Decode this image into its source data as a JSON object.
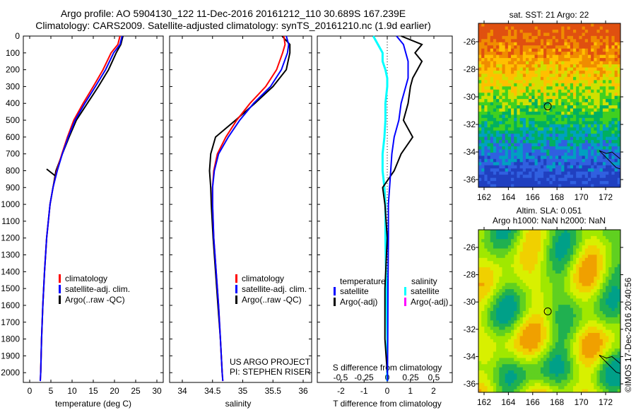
{
  "title_line1": "Argo profile: AO 5904130_122 11-Dec-2016 20161212_110 30.689S 167.239E",
  "title_line2": "Climatology: CARS2009. Satellite-adjusted climatology: synTS_20161210.nc (1.9d earlier)",
  "colors": {
    "climatology": "#ff0000",
    "satellite": "#0000ff",
    "argo": "#000000",
    "sal_satellite": "#00ffff",
    "sal_argo": "#ff00ff"
  },
  "chart_data": [
    {
      "type": "line",
      "name": "temperature",
      "xlabel": "temperature (deg C)",
      "xlim": [
        -1,
        31
      ],
      "ylim": [
        2050,
        0
      ],
      "xticks": [
        "0",
        "5",
        "10",
        "15",
        "20",
        "25",
        "30"
      ],
      "yticks": [
        "0",
        "100",
        "200",
        "300",
        "400",
        "500",
        "600",
        "700",
        "800",
        "900",
        "1000",
        "1100",
        "1200",
        "1300",
        "1400",
        "1500",
        "1600",
        "1700",
        "1800",
        "1900",
        "2000"
      ],
      "legend": [
        "climatology",
        "satellite-adj. clim.",
        "Argo(..raw -QC)"
      ],
      "depth": [
        0,
        50,
        100,
        200,
        300,
        400,
        500,
        600,
        700,
        800,
        900,
        1000,
        1200,
        1400,
        1600,
        1800,
        2000,
        2050
      ],
      "series": [
        {
          "name": "climatology",
          "values": [
            21.3,
            20.8,
            19.2,
            17.3,
            15.0,
            12.6,
            10.4,
            8.9,
            7.6,
            6.4,
            5.5,
            4.8,
            4.0,
            3.5,
            3.1,
            2.8,
            2.6,
            2.5
          ]
        },
        {
          "name": "satellite-adj. clim.",
          "values": [
            21.8,
            21.3,
            19.8,
            17.9,
            15.5,
            13.0,
            10.7,
            9.1,
            7.7,
            6.5,
            5.5,
            4.8,
            4.0,
            3.5,
            3.1,
            2.8,
            2.6,
            2.5
          ]
        },
        {
          "name": "Argo(..raw -QC)",
          "values": [
            22.0,
            21.5,
            20.4,
            18.6,
            16.2,
            13.6,
            11.0,
            9.3,
            7.7,
            6.2,
            5.5,
            4.8,
            4.0,
            3.5,
            3.1,
            2.8,
            2.6,
            null
          ]
        }
      ]
    },
    {
      "type": "line",
      "name": "salinity",
      "xlabel": "salinity",
      "xlim": [
        33.8,
        36.15
      ],
      "ylim": [
        2050,
        0
      ],
      "xticks": [
        "34",
        "34.5",
        "35",
        "35.5",
        "36"
      ],
      "legend": [
        "climatology",
        "satellite-adj. clim.",
        "Argo(..raw -QC)"
      ],
      "annotation": [
        "US ARGO PROJECT",
        "PI: STEPHEN RISER"
      ],
      "depth": [
        0,
        50,
        100,
        200,
        300,
        400,
        500,
        600,
        700,
        800,
        900,
        1000,
        1200,
        1400,
        1600,
        1800,
        2000,
        2050
      ],
      "series": [
        {
          "name": "climatology",
          "values": [
            35.68,
            35.7,
            35.66,
            35.56,
            35.38,
            35.12,
            34.9,
            34.72,
            34.58,
            34.52,
            34.5,
            34.5,
            34.52,
            34.56,
            34.6,
            34.63,
            34.66,
            34.67
          ]
        },
        {
          "name": "satellite-adj. clim.",
          "values": [
            35.72,
            35.76,
            35.74,
            35.64,
            35.46,
            35.18,
            34.95,
            34.76,
            34.6,
            34.53,
            34.5,
            34.5,
            34.52,
            34.56,
            34.6,
            34.63,
            34.66,
            34.67
          ]
        },
        {
          "name": "Argo(..raw -QC)",
          "values": [
            35.65,
            35.78,
            35.78,
            35.72,
            35.5,
            35.2,
            34.88,
            34.55,
            34.47,
            34.45,
            34.47,
            34.48,
            34.51,
            34.55,
            34.59,
            34.63,
            34.66,
            null
          ]
        }
      ]
    },
    {
      "type": "line",
      "name": "difference",
      "xlabel": "T difference from climatology",
      "x2label": "S difference from climatology",
      "xlim": [
        -3,
        3
      ],
      "ylim": [
        2050,
        0
      ],
      "xticks": [
        "-2",
        "-1",
        "0",
        "1",
        "2"
      ],
      "x2ticks": [
        "-0.5",
        "-0.25",
        "0",
        "0.25",
        "0.5"
      ],
      "legend_temperature_title": "temperature",
      "legend_salinity_title": "salinity",
      "legend": [
        "satellite",
        "Argo(-adj)",
        "satellite",
        "Argo(-adj)"
      ],
      "depth": [
        0,
        50,
        100,
        150,
        200,
        250,
        300,
        400,
        500,
        600,
        700,
        800,
        900,
        1000,
        1200,
        1500,
        1800,
        2000,
        2050
      ],
      "series": [
        {
          "name": "T satellite",
          "values": [
            0.4,
            0.7,
            0.8,
            0.9,
            0.9,
            0.9,
            0.8,
            0.6,
            0.5,
            0.3,
            0.2,
            0.15,
            0.1,
            0.05,
            0.05,
            0.03,
            0.02,
            0.01,
            0.01
          ]
        },
        {
          "name": "T Argo(-adj)",
          "values": [
            0.6,
            1.5,
            1.2,
            1.5,
            1.3,
            1.1,
            1.0,
            0.9,
            0.7,
            1.1,
            0.6,
            0.3,
            -0.2,
            -0.1,
            0.0,
            -0.1,
            -0.1,
            0.0,
            null
          ]
        },
        {
          "name": "S satellite",
          "values": [
            -0.15,
            -0.1,
            -0.05,
            -0.05,
            -0.02,
            0.0,
            0.0,
            -0.02,
            -0.02,
            -0.03,
            -0.05,
            -0.05,
            -0.03,
            -0.02,
            -0.02,
            -0.01,
            0.0,
            0.0,
            0.0
          ]
        }
      ]
    },
    {
      "type": "heatmap",
      "name": "sst-map",
      "title": "sat. SST: 21 Argo: 22",
      "xticks": [
        "162",
        "164",
        "166",
        "168",
        "170",
        "172"
      ],
      "yticks": [
        "-26",
        "-28",
        "-30",
        "-32",
        "-34",
        "-36"
      ],
      "marker": [
        167.239,
        -30.689
      ]
    },
    {
      "type": "heatmap",
      "name": "sla-map",
      "title": [
        "Altim. SLA: 0.051",
        "Argo h1000: NaN h2000: NaN"
      ],
      "xticks": [
        "162",
        "164",
        "166",
        "168",
        "170",
        "172"
      ],
      "yticks": [
        "-26",
        "-28",
        "-30",
        "-32",
        "-34",
        "-36"
      ],
      "marker": [
        167.239,
        -30.689
      ]
    }
  ],
  "credit": "©IMOS 17-Dec-2016 20:40:56"
}
